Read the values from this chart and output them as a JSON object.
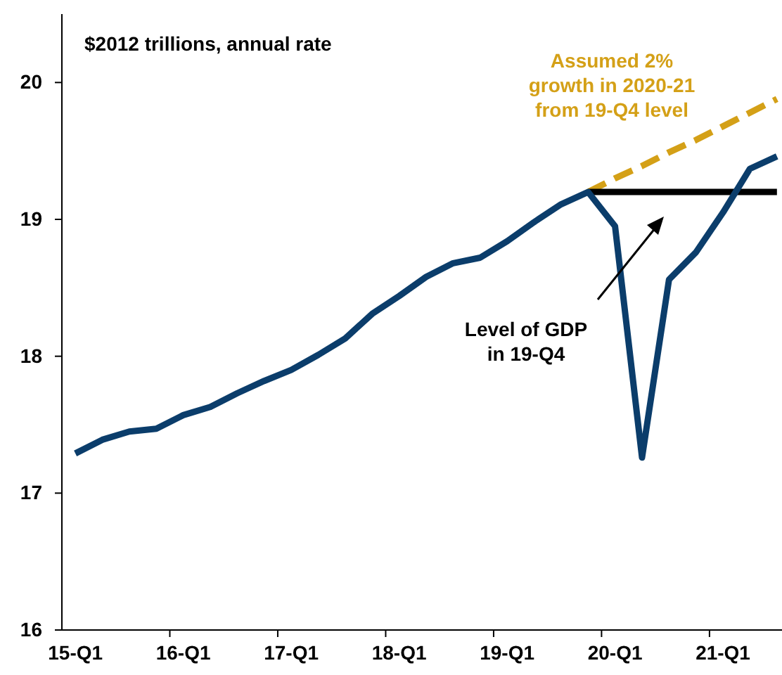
{
  "chart_data": {
    "type": "line",
    "ylabel": "$2012 trillions, annual rate",
    "categories": [
      "15-Q1",
      null,
      null,
      null,
      "16-Q1",
      null,
      null,
      null,
      "17-Q1",
      null,
      null,
      null,
      "18-Q1",
      null,
      null,
      null,
      "19-Q1",
      null,
      null,
      null,
      "20-Q1",
      null,
      null,
      null,
      "21-Q1",
      null,
      null
    ],
    "series": [
      {
        "color": "#d4a017",
        "line_style": "dashed",
        "name": "Assumed 2%\ngrowth in 2020-21\nfrom 19-Q4 level",
        "values": [
          null,
          null,
          null,
          null,
          null,
          null,
          null,
          null,
          null,
          null,
          null,
          null,
          null,
          null,
          null,
          null,
          null,
          null,
          null,
          19.2,
          19.3,
          19.39,
          19.49,
          19.58,
          19.68,
          19.78,
          19.88
        ]
      },
      {
        "color": "#000000",
        "line_style": "solid",
        "values": [
          null,
          null,
          null,
          null,
          null,
          null,
          null,
          null,
          null,
          null,
          null,
          null,
          null,
          null,
          null,
          null,
          null,
          null,
          null,
          19.2,
          19.2,
          19.2,
          19.2,
          19.2,
          19.2,
          19.2,
          19.2
        ]
      },
      {
        "color": "#0b3d6b",
        "line_style": "solid",
        "values": [
          17.29,
          17.39,
          17.45,
          17.47,
          17.57,
          17.63,
          17.73,
          17.82,
          17.9,
          18.01,
          18.13,
          18.31,
          18.44,
          18.58,
          18.68,
          18.72,
          18.84,
          18.98,
          19.11,
          19.2,
          18.95,
          17.26,
          18.56,
          18.76,
          19.05,
          19.37,
          19.46
        ]
      }
    ],
    "annotations": [
      "Level of GDP\nin 19-Q4"
    ],
    "ylim": [
      16,
      20.5
    ],
    "yticks": [
      16,
      17,
      18,
      19,
      20
    ],
    "grid": false,
    "marker": "none"
  }
}
